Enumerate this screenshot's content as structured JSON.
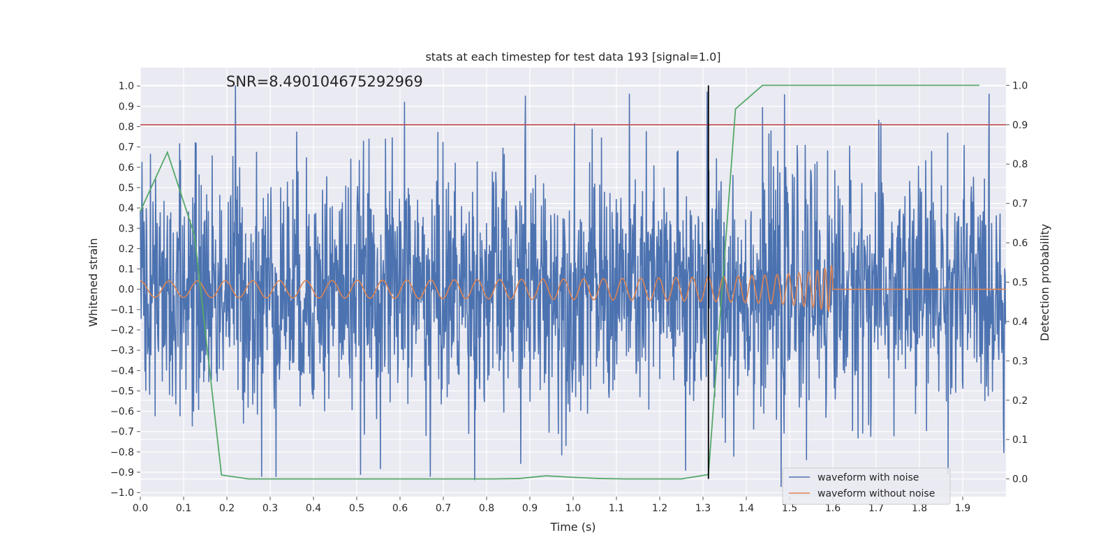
{
  "chart_data": {
    "type": "line",
    "title": "stats at each timestep for test data 193 [signal=1.0]",
    "annotation": "SNR=8.490104675292969",
    "xlabel": "Time (s)",
    "ylabel": "Whitened strain",
    "y2label": "Detection probability",
    "xlim": [
      0,
      2.0
    ],
    "ylim": [
      -1.02,
      1.09
    ],
    "y2lim": [
      -0.045,
      1.045
    ],
    "x_ticks": [
      "0.0",
      "0.1",
      "0.2",
      "0.3",
      "0.4",
      "0.5",
      "0.6",
      "0.7",
      "0.8",
      "0.9",
      "1.0",
      "1.1",
      "1.2",
      "1.3",
      "1.4",
      "1.5",
      "1.6",
      "1.7",
      "1.8",
      "1.9"
    ],
    "y_ticks": [
      "1.0",
      "0.9",
      "0.8",
      "0.7",
      "0.6",
      "0.5",
      "0.4",
      "0.3",
      "0.2",
      "0.1",
      "0.0",
      "−0.1",
      "−0.2",
      "−0.3",
      "−0.4",
      "−0.5",
      "−0.6",
      "−0.7",
      "−0.8",
      "−0.9",
      "−1.0"
    ],
    "y2_ticks": [
      "1.0",
      "0.9",
      "0.8",
      "0.7",
      "0.6",
      "0.5",
      "0.4",
      "0.3",
      "0.2",
      "0.1",
      "0.0"
    ],
    "grid": true,
    "legend_position": "lower-right",
    "series": [
      {
        "name": "waveform with noise",
        "axis": "left",
        "color": "#4c72b0",
        "description": "whitened strain noise, approx amplitude 0.3, spikes up to ±1.0",
        "peaks": [
          {
            "x": 0.22,
            "y": 1.0
          },
          {
            "x": 0.28,
            "y": -0.92
          },
          {
            "x": 0.61,
            "y": 0.92
          },
          {
            "x": 0.67,
            "y": -0.92
          },
          {
            "x": 0.89,
            "y": 0.95
          },
          {
            "x": 1.31,
            "y": 0.97
          },
          {
            "x": 1.26,
            "y": -0.89
          },
          {
            "x": 1.48,
            "y": -0.97
          }
        ]
      },
      {
        "name": "waveform without noise",
        "axis": "left",
        "color": "#dd8452",
        "description": "chirp: amplitude ~0.04 growing to ~0.3 at merger near t=1.6 s, zero after"
      },
      {
        "name": "detection probability",
        "axis": "right",
        "color": "#55a868",
        "x": [
          0.0,
          0.0625,
          0.125,
          0.1875,
          0.25,
          0.3125,
          0.375,
          0.4375,
          0.5,
          0.5625,
          0.625,
          0.6875,
          0.75,
          0.8125,
          0.875,
          0.9375,
          1.0,
          1.0625,
          1.125,
          1.1875,
          1.25,
          1.3125,
          1.375,
          1.4375,
          1.5,
          1.5625,
          1.625,
          1.6875,
          1.75,
          1.8125,
          1.875,
          1.9375
        ],
        "y": [
          0.68,
          0.83,
          0.62,
          0.01,
          0.0,
          0.0,
          0.0,
          0.0,
          0.0,
          0.0,
          0.0,
          0.0,
          0.0,
          0.0,
          0.001,
          0.008,
          0.004,
          0.001,
          0.0,
          0.0,
          0.0,
          0.011,
          0.94,
          1.0,
          1.0,
          1.0,
          1.0,
          1.0,
          1.0,
          1.0,
          1.0,
          1.0
        ]
      }
    ],
    "threshold_line": {
      "axis": "right",
      "y": 0.9,
      "color": "#c44e52"
    },
    "marker_line": {
      "x": 1.3125,
      "y_range": [
        0.0,
        1.0
      ],
      "color": "#000000"
    }
  }
}
